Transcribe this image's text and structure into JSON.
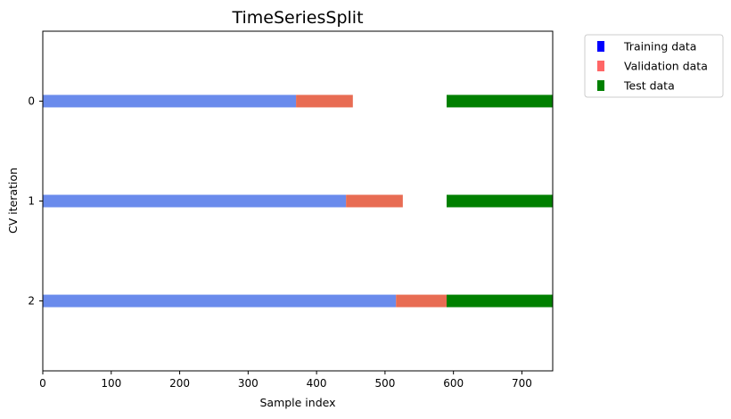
{
  "chart_data": {
    "type": "bar",
    "orientation": "horizontal-segments",
    "title": "TimeSeriesSplit",
    "xlabel": "Sample index",
    "ylabel": "CV iteration",
    "xlim": [
      0,
      745
    ],
    "ylim": [
      -0.7,
      2.7
    ],
    "x_ticks": [
      0,
      100,
      200,
      300,
      400,
      500,
      600,
      700
    ],
    "y_ticks": [
      0,
      1,
      2
    ],
    "grid": false,
    "legend_placement": "outside-top-right",
    "legend": [
      {
        "label": "Training data",
        "color": "#0000ff"
      },
      {
        "label": "Validation data",
        "color": "#ff6666"
      },
      {
        "label": "Test data",
        "color": "#008000"
      }
    ],
    "series_colors": {
      "train": "#6a8bec",
      "validation": "#e86c53",
      "test": "#008000"
    },
    "iterations": [
      {
        "iteration": 0,
        "segments": [
          {
            "kind": "train",
            "start": 0,
            "end": 370
          },
          {
            "kind": "validation",
            "start": 370,
            "end": 453
          },
          {
            "kind": "test",
            "start": 590,
            "end": 745
          }
        ]
      },
      {
        "iteration": 1,
        "segments": [
          {
            "kind": "train",
            "start": 0,
            "end": 443
          },
          {
            "kind": "validation",
            "start": 443,
            "end": 526
          },
          {
            "kind": "test",
            "start": 590,
            "end": 745
          }
        ]
      },
      {
        "iteration": 2,
        "segments": [
          {
            "kind": "train",
            "start": 0,
            "end": 516
          },
          {
            "kind": "validation",
            "start": 516,
            "end": 590
          },
          {
            "kind": "test",
            "start": 590,
            "end": 745
          }
        ]
      }
    ]
  }
}
